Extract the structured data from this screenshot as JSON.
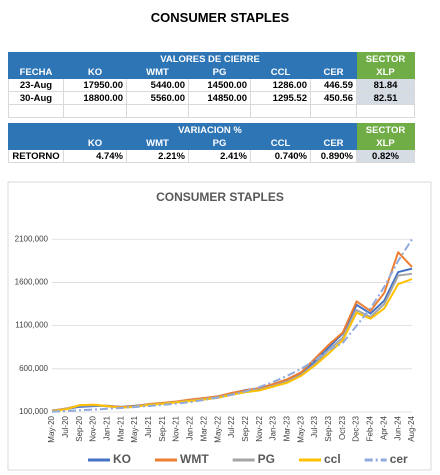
{
  "title": "CONSUMER STAPLES",
  "table_cierre": {
    "group_header": "VALORES DE CIERRE",
    "sector_header": "SECTOR",
    "columns": [
      "FECHA",
      "KO",
      "WMT",
      "PG",
      "CCL",
      "CER",
      "XLP"
    ],
    "rows": [
      [
        "23-Aug",
        "17950.00",
        "5440.00",
        "14500.00",
        "1286.00",
        "446.59",
        "81.84"
      ],
      [
        "30-Aug",
        "18800.00",
        "5560.00",
        "14850.00",
        "1295.52",
        "450.56",
        "82.51"
      ]
    ]
  },
  "table_variacion": {
    "group_header": "VARIACION %",
    "sector_header": "SECTOR",
    "columns": [
      "KO",
      "WMT",
      "PG",
      "CCL",
      "CER",
      "XLP"
    ],
    "rows": [
      [
        "RETORNO",
        "4.74%",
        "2.21%",
        "2.41%",
        "0.740%",
        "0.890%",
        "0.82%"
      ]
    ]
  },
  "chart_data": {
    "type": "line",
    "title": "CONSUMER STAPLES",
    "x": [
      "May-20",
      "Jul-20",
      "Sep-20",
      "Nov-20",
      "Jan-21",
      "Mar-21",
      "May-21",
      "Jul-21",
      "Sep-21",
      "Nov-21",
      "Jan-22",
      "Mar-22",
      "May-22",
      "Jul-22",
      "Sep-22",
      "Nov-22",
      "Jan-23",
      "Mar-23",
      "May-23",
      "Jul-23",
      "Sep-23",
      "Oct-23",
      "Dec-23",
      "Feb-24",
      "Apr-24",
      "Jun-24",
      "Aug-24"
    ],
    "series": [
      {
        "name": "KO",
        "color": "#4472c4",
        "values": [
          118000,
          135000,
          160000,
          168000,
          172000,
          160000,
          172000,
          190000,
          200000,
          218000,
          238000,
          258000,
          280000,
          318000,
          355000,
          372000,
          418000,
          470000,
          545000,
          690000,
          850000,
          1010000,
          1340000,
          1240000,
          1390000,
          1720000,
          1760000
        ]
      },
      {
        "name": "WMT",
        "color": "#ed7d31",
        "values": [
          115000,
          140000,
          175000,
          180000,
          170000,
          158000,
          168000,
          192000,
          205000,
          222000,
          245000,
          262000,
          282000,
          322000,
          350000,
          378000,
          425000,
          480000,
          560000,
          720000,
          880000,
          1020000,
          1380000,
          1270000,
          1480000,
          1950000,
          1780000
        ]
      },
      {
        "name": "PG",
        "color": "#a5a5a5",
        "values": [
          112000,
          138000,
          172000,
          178000,
          165000,
          150000,
          165000,
          185000,
          198000,
          215000,
          232000,
          250000,
          272000,
          305000,
          338000,
          360000,
          405000,
          455000,
          530000,
          660000,
          820000,
          960000,
          1280000,
          1200000,
          1350000,
          1680000,
          1700000
        ]
      },
      {
        "name": "ccl",
        "color": "#ffc000",
        "values": [
          110000,
          130000,
          180000,
          185000,
          168000,
          150000,
          160000,
          182000,
          195000,
          212000,
          228000,
          245000,
          265000,
          300000,
          330000,
          350000,
          395000,
          440000,
          520000,
          640000,
          780000,
          930000,
          1250000,
          1180000,
          1300000,
          1580000,
          1640000
        ]
      },
      {
        "name": "cer",
        "color": "#8faadc",
        "dash": "dash-dot",
        "values": [
          105000,
          112000,
          120000,
          128000,
          137000,
          147000,
          158000,
          170000,
          183000,
          198000,
          215000,
          240000,
          268000,
          300000,
          340000,
          390000,
          450000,
          520000,
          600000,
          700000,
          820000,
          900000,
          1100000,
          1300000,
          1550000,
          1850000,
          2100000
        ]
      }
    ],
    "ylim": [
      100000,
      2300000
    ],
    "yticks": [
      {
        "value": 100000,
        "label": "100,000"
      },
      {
        "value": 600000,
        "label": "600,000"
      },
      {
        "value": 1100000,
        "label": "1100,000"
      },
      {
        "value": 1600000,
        "label": "1600,000"
      },
      {
        "value": 2100000,
        "label": "2100,000"
      }
    ],
    "grid": true,
    "legend": "bottom"
  }
}
